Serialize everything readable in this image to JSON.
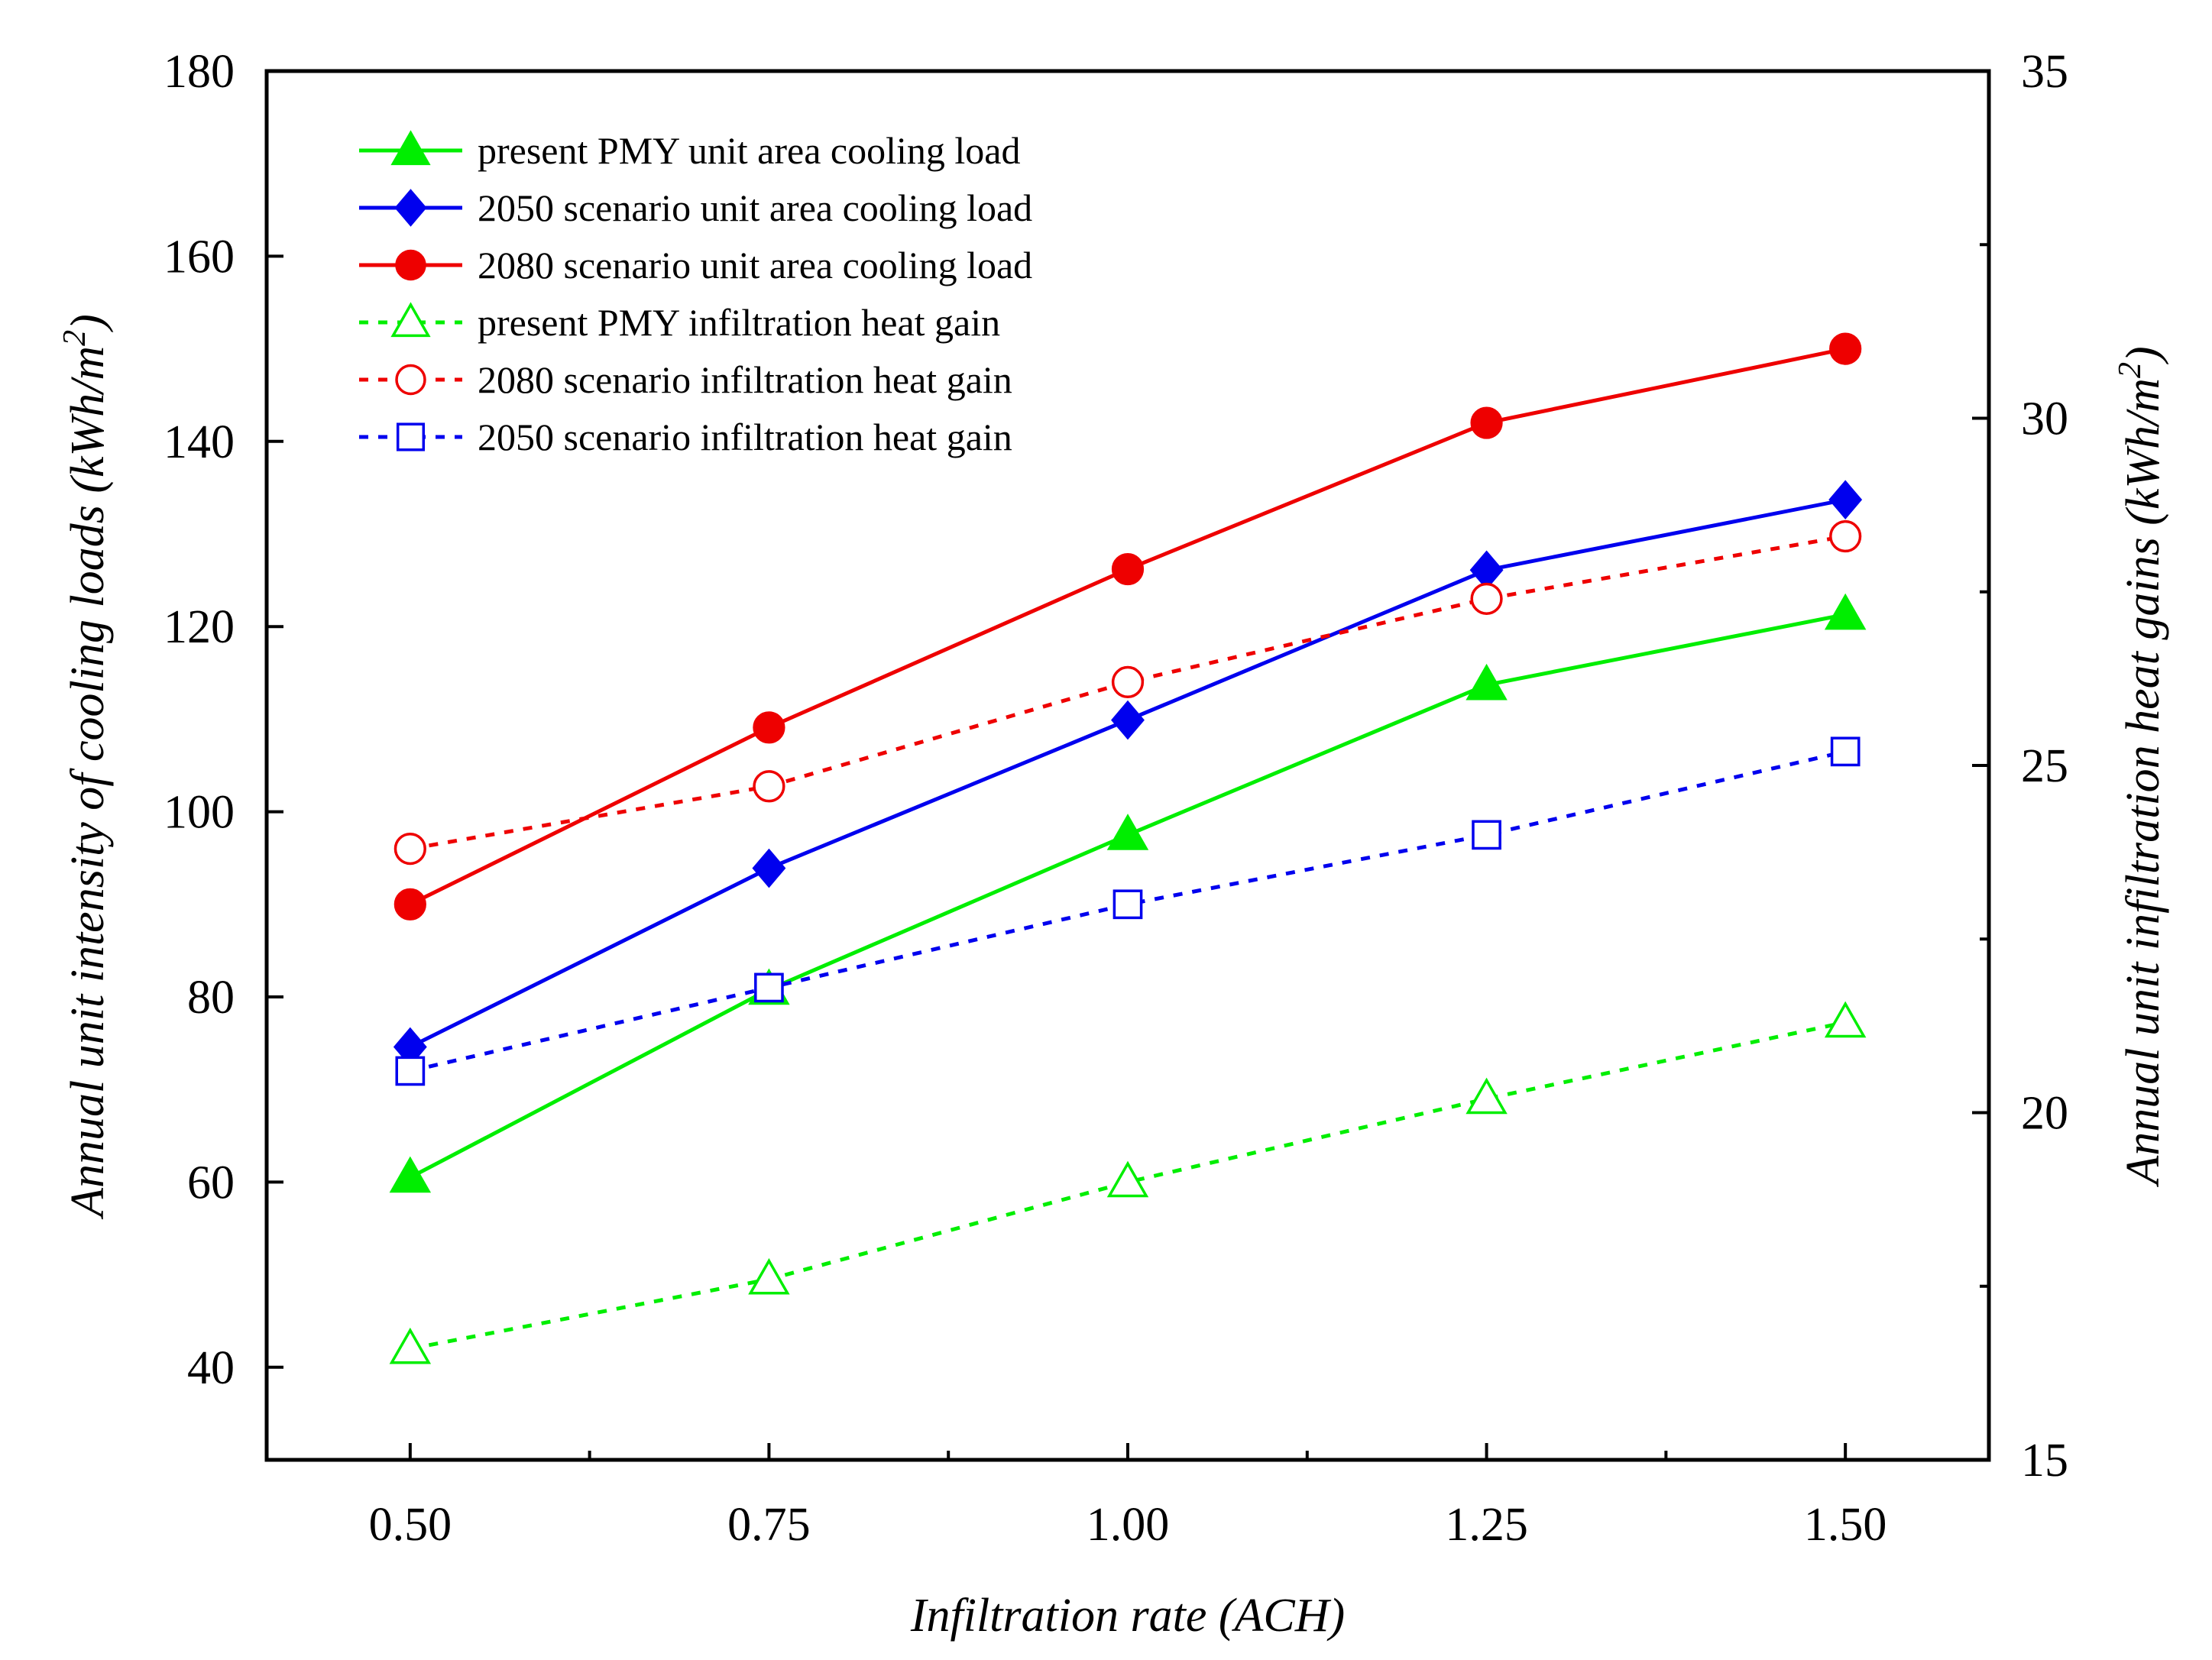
{
  "chart_data": {
    "type": "line",
    "x": [
      0.5,
      0.75,
      1.0,
      1.25,
      1.5
    ],
    "x_tick_labels": [
      "0.50",
      "0.75",
      "1.00",
      "1.25",
      "1.50"
    ],
    "xlabel": "Infiltration rate (ACH)",
    "xlim": [
      0.4,
      1.6
    ],
    "y_left": {
      "label": "Annual unit intensity of cooling loads (kWh/m",
      "label_sup": "2",
      "label_end": ")",
      "lim": [
        30,
        180
      ],
      "ticks": [
        40,
        60,
        80,
        100,
        120,
        140,
        160,
        180
      ]
    },
    "y_right": {
      "label": "Annual unit infiltration heat gains (kWh/m",
      "label_sup": "2",
      "label_end": ")",
      "lim": [
        15,
        35
      ],
      "ticks": [
        15,
        20,
        25,
        30,
        35
      ]
    },
    "grid": false,
    "legend_position": "top-left",
    "series": [
      {
        "name": "present PMY unit area cooling load",
        "axis": "left",
        "color": "#00ee00",
        "dash": "solid",
        "marker": "triangle",
        "filled": true,
        "values": [
          60.5,
          80.8,
          97.5,
          113.7,
          121.3
        ]
      },
      {
        "name": "2050 scenario unit area cooling load",
        "axis": "left",
        "color": "#0000ee",
        "dash": "solid",
        "marker": "diamond",
        "filled": true,
        "values": [
          74.6,
          93.9,
          109.9,
          126.1,
          133.7
        ]
      },
      {
        "name": "2080 scenario unit area cooling load",
        "axis": "left",
        "color": "#ee0000",
        "dash": "solid",
        "marker": "circle",
        "filled": true,
        "values": [
          90.0,
          109.1,
          126.2,
          142.0,
          150.0
        ]
      },
      {
        "name": "present PMY infiltration heat gain",
        "axis": "right",
        "color": "#00ee00",
        "dash": "dotted",
        "marker": "triangle",
        "filled": false,
        "values": [
          16.6,
          17.6,
          19.0,
          20.2,
          21.3
        ]
      },
      {
        "name": "2080 scenario infiltration heat gain",
        "axis": "right",
        "color": "#ee0000",
        "dash": "dotted",
        "marker": "circle",
        "filled": false,
        "values": [
          23.8,
          24.7,
          26.2,
          27.4,
          28.3
        ]
      },
      {
        "name": "2050 scenario infiltration heat gain",
        "axis": "right",
        "color": "#0000ee",
        "dash": "dotted",
        "marker": "square",
        "filled": false,
        "values": [
          20.6,
          21.8,
          23.0,
          24.0,
          25.2
        ]
      }
    ]
  }
}
